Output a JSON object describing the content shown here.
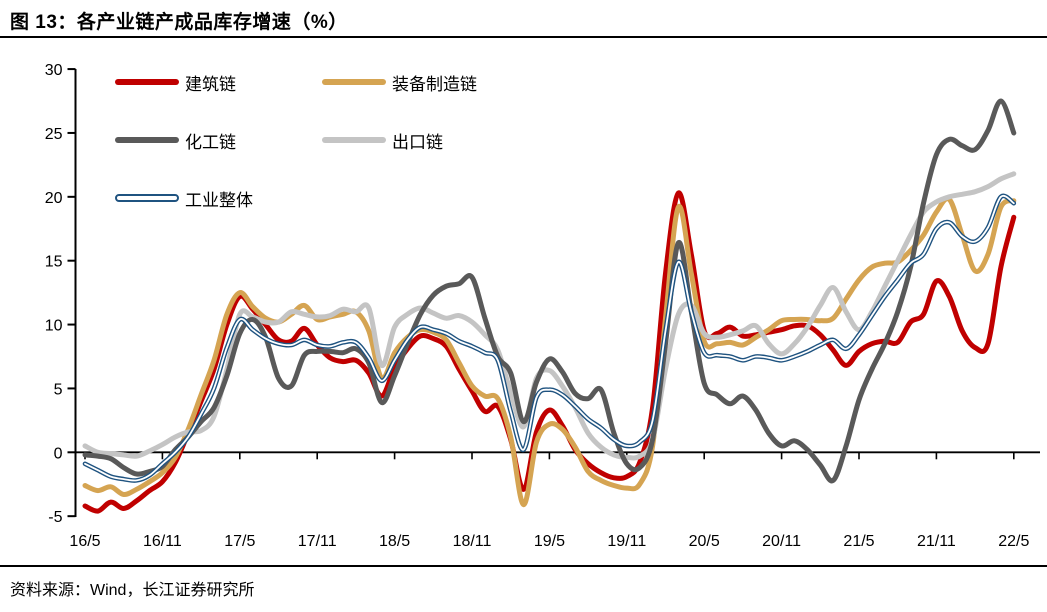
{
  "title": "图 13：各产业链产成品库存增速（%）",
  "source": "资料来源：Wind，长江证券研究所",
  "chart_data": {
    "type": "line",
    "title": "各产业链产成品库存增速（%）",
    "xlabel": "",
    "ylabel": "",
    "ylim": [
      -5,
      30
    ],
    "y_ticks": [
      30,
      25,
      20,
      15,
      10,
      5,
      0,
      -5
    ],
    "x_tick_labels": [
      "16/5",
      "16/11",
      "17/5",
      "17/11",
      "18/5",
      "18/11",
      "19/5",
      "19/11",
      "20/5",
      "20/11",
      "21/5",
      "21/11",
      "22/5"
    ],
    "x_frequency": "monthly",
    "x_range": "2016/5 - 2022/5",
    "grid": "off",
    "legend_position": "top-left-inside",
    "axis_color": "#000000",
    "series": [
      {
        "name": "建筑链",
        "color": "#C00000",
        "style": "solid",
        "width": 5,
        "values": [
          -4.2,
          -4.6,
          -3.9,
          -4.4,
          -3.8,
          -3.0,
          -2.3,
          -0.8,
          1.5,
          4.0,
          6.5,
          10.0,
          12.2,
          11.2,
          10.0,
          8.8,
          8.7,
          9.7,
          8.4,
          7.4,
          7.1,
          7.2,
          6.2,
          4.4,
          6.6,
          8.1,
          9.1,
          8.9,
          8.3,
          6.5,
          4.8,
          3.2,
          3.6,
          1.0,
          -2.9,
          1.6,
          3.3,
          2.1,
          0.2,
          -0.9,
          -1.6,
          -2.0,
          -1.9,
          -0.8,
          3.5,
          14.0,
          20.3,
          15.5,
          9.5,
          9.3,
          9.8,
          9.1,
          9.2,
          9.4,
          9.6,
          9.9,
          9.9,
          9.2,
          8.0,
          6.8,
          7.9,
          8.5,
          8.7,
          8.6,
          10.2,
          10.8,
          13.4,
          12.2,
          9.5,
          8.2,
          8.5,
          14.5,
          18.4
        ]
      },
      {
        "name": "装备制造链",
        "color": "#D5A452",
        "style": "solid",
        "width": 5,
        "values": [
          -2.6,
          -3.0,
          -2.7,
          -3.3,
          -2.9,
          -2.3,
          -1.6,
          -0.4,
          1.8,
          4.5,
          7.2,
          10.8,
          12.5,
          11.4,
          10.5,
          10.2,
          10.8,
          11.5,
          10.4,
          10.6,
          10.8,
          11.0,
          9.5,
          5.8,
          7.8,
          9.0,
          9.6,
          9.4,
          8.8,
          7.0,
          5.2,
          4.4,
          4.2,
          1.2,
          -4.1,
          0.8,
          2.2,
          1.8,
          0.4,
          -1.5,
          -2.2,
          -2.6,
          -2.8,
          -2.5,
          0.5,
          10.5,
          19.2,
          14.0,
          8.7,
          8.5,
          8.6,
          8.4,
          9.0,
          9.6,
          10.3,
          10.4,
          10.4,
          10.3,
          10.5,
          12.0,
          13.5,
          14.5,
          14.8,
          14.9,
          15.8,
          17.0,
          18.8,
          19.8,
          17.0,
          14.2,
          15.5,
          19.2,
          19.7
        ]
      },
      {
        "name": "化工链",
        "color": "#595959",
        "style": "solid",
        "width": 5,
        "values": [
          -0.2,
          -0.3,
          -0.5,
          -1.2,
          -1.7,
          -1.5,
          -1.1,
          0.2,
          1.2,
          2.4,
          3.5,
          6.0,
          9.3,
          10.4,
          9.0,
          5.8,
          5.2,
          7.6,
          7.9,
          7.9,
          7.8,
          8.1,
          7.0,
          3.9,
          6.0,
          8.5,
          10.8,
          12.3,
          13.0,
          13.2,
          13.7,
          10.5,
          7.5,
          6.2,
          2.4,
          5.5,
          7.3,
          6.3,
          4.6,
          4.2,
          4.9,
          1.5,
          -0.9,
          -1.2,
          1.0,
          8.5,
          16.4,
          11.0,
          5.4,
          4.5,
          3.8,
          4.4,
          3.3,
          1.5,
          0.5,
          0.9,
          0.2,
          -1.0,
          -2.2,
          0.5,
          4.1,
          6.5,
          8.5,
          11.0,
          14.5,
          19.5,
          23.3,
          24.5,
          24.0,
          23.7,
          25.2,
          27.5,
          25.0
        ]
      },
      {
        "name": "出口链",
        "color": "#C4C4C4",
        "style": "solid",
        "width": 5,
        "values": [
          0.5,
          0.0,
          -0.1,
          -0.2,
          -0.3,
          0.1,
          0.6,
          1.2,
          1.6,
          1.7,
          2.8,
          6.5,
          10.8,
          10.6,
          10.2,
          10.2,
          11.0,
          10.8,
          10.6,
          10.7,
          11.2,
          11.0,
          11.3,
          6.8,
          9.8,
          10.8,
          11.3,
          10.9,
          10.5,
          10.7,
          10.2,
          9.2,
          8.0,
          4.7,
          2.0,
          5.8,
          6.4,
          5.2,
          3.5,
          1.5,
          0.4,
          -0.2,
          -0.4,
          -0.3,
          1.0,
          6.5,
          10.8,
          11.5,
          9.3,
          9.0,
          9.2,
          9.5,
          9.9,
          8.5,
          7.7,
          8.5,
          9.8,
          11.5,
          12.9,
          11.0,
          9.6,
          11.0,
          13.0,
          15.0,
          17.0,
          18.8,
          19.6,
          20.0,
          20.2,
          20.4,
          20.8,
          21.4,
          21.8
        ]
      },
      {
        "name": "工业整体",
        "color": "#1F5380",
        "style": "outline",
        "width": 4.6,
        "values": [
          -0.9,
          -1.4,
          -1.9,
          -2.1,
          -2.2,
          -1.8,
          -0.9,
          0.0,
          1.2,
          3.0,
          5.0,
          8.2,
          10.4,
          9.6,
          8.9,
          8.5,
          8.4,
          8.8,
          8.4,
          8.3,
          8.6,
          8.6,
          7.4,
          5.6,
          7.2,
          8.8,
          9.8,
          9.6,
          9.3,
          8.7,
          8.3,
          7.8,
          7.2,
          3.2,
          0.2,
          4.3,
          4.9,
          4.5,
          3.6,
          2.6,
          1.9,
          1.0,
          0.5,
          0.8,
          2.5,
          9.5,
          14.9,
          11.0,
          7.8,
          7.6,
          7.5,
          7.2,
          7.5,
          7.4,
          7.2,
          7.5,
          7.9,
          8.4,
          8.8,
          8.1,
          9.2,
          10.7,
          12.2,
          13.5,
          14.8,
          15.5,
          17.5,
          18.0,
          16.9,
          16.5,
          17.6,
          20.0,
          19.5
        ]
      }
    ],
    "draw_order": [
      0,
      1,
      3,
      2,
      4
    ]
  }
}
